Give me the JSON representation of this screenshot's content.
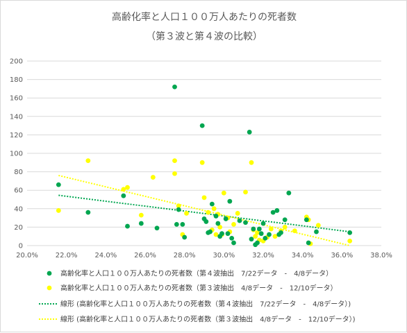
{
  "chart_data": {
    "type": "scatter",
    "title": "高齢化率と人口１００万人あたりの死者数",
    "subtitle": "（第３波と第４波の比較）",
    "xlabel": "",
    "ylabel": "",
    "xlim": [
      0.2,
      0.38
    ],
    "ylim": [
      0,
      200
    ],
    "x_ticks": [
      "20.0%",
      "22.0%",
      "24.0%",
      "26.0%",
      "28.0%",
      "30.0%",
      "32.0%",
      "34.0%",
      "36.0%",
      "38.0%"
    ],
    "y_ticks": [
      "0",
      "20",
      "40",
      "60",
      "80",
      "100",
      "120",
      "140",
      "160",
      "180",
      "200"
    ],
    "grid": "horizontal",
    "legend_position": "bottom",
    "series": [
      {
        "name": "高齢化率と人口１００万人あたりの死者数（第４波抽出　7/22データ　-　4/8データ）",
        "color": "#00a650",
        "points": [
          [
            0.216,
            66
          ],
          [
            0.231,
            36
          ],
          [
            0.249,
            54
          ],
          [
            0.251,
            21
          ],
          [
            0.258,
            24
          ],
          [
            0.266,
            19
          ],
          [
            0.275,
            172
          ],
          [
            0.276,
            23
          ],
          [
            0.277,
            39
          ],
          [
            0.279,
            23
          ],
          [
            0.28,
            9
          ],
          [
            0.289,
            130
          ],
          [
            0.29,
            29
          ],
          [
            0.291,
            26
          ],
          [
            0.292,
            14
          ],
          [
            0.293,
            15
          ],
          [
            0.294,
            45
          ],
          [
            0.296,
            32
          ],
          [
            0.297,
            24
          ],
          [
            0.298,
            10
          ],
          [
            0.299,
            13
          ],
          [
            0.301,
            29
          ],
          [
            0.302,
            13
          ],
          [
            0.303,
            48
          ],
          [
            0.304,
            8
          ],
          [
            0.305,
            3
          ],
          [
            0.308,
            27
          ],
          [
            0.311,
            25
          ],
          [
            0.313,
            123
          ],
          [
            0.314,
            7
          ],
          [
            0.315,
            18
          ],
          [
            0.316,
            1
          ],
          [
            0.317,
            3
          ],
          [
            0.318,
            18
          ],
          [
            0.319,
            13
          ],
          [
            0.32,
            24
          ],
          [
            0.321,
            8
          ],
          [
            0.323,
            12
          ],
          [
            0.325,
            36
          ],
          [
            0.327,
            38
          ],
          [
            0.328,
            12
          ],
          [
            0.329,
            14
          ],
          [
            0.331,
            28
          ],
          [
            0.333,
            57
          ],
          [
            0.342,
            28
          ],
          [
            0.343,
            3
          ],
          [
            0.347,
            15
          ],
          [
            0.364,
            14
          ]
        ]
      },
      {
        "name": "高齢化率と人口１００万人あたりの死者数（第３波抽出　4/8データ　-　12/10データ）",
        "color": "#ffff00",
        "points": [
          [
            0.216,
            38
          ],
          [
            0.231,
            92
          ],
          [
            0.249,
            61
          ],
          [
            0.251,
            63
          ],
          [
            0.258,
            33
          ],
          [
            0.264,
            74
          ],
          [
            0.275,
            92
          ],
          [
            0.275,
            78
          ],
          [
            0.277,
            43
          ],
          [
            0.279,
            12
          ],
          [
            0.281,
            35
          ],
          [
            0.289,
            90
          ],
          [
            0.29,
            52
          ],
          [
            0.292,
            36
          ],
          [
            0.294,
            17
          ],
          [
            0.295,
            40
          ],
          [
            0.296,
            12
          ],
          [
            0.297,
            34
          ],
          [
            0.298,
            20
          ],
          [
            0.299,
            12
          ],
          [
            0.3,
            57
          ],
          [
            0.302,
            30
          ],
          [
            0.303,
            15
          ],
          [
            0.305,
            23
          ],
          [
            0.307,
            35
          ],
          [
            0.311,
            58
          ],
          [
            0.314,
            90
          ],
          [
            0.315,
            17
          ],
          [
            0.316,
            10
          ],
          [
            0.317,
            14
          ],
          [
            0.318,
            6
          ],
          [
            0.32,
            5
          ],
          [
            0.322,
            9
          ],
          [
            0.324,
            18
          ],
          [
            0.326,
            10
          ],
          [
            0.329,
            16
          ],
          [
            0.331,
            20
          ],
          [
            0.336,
            16
          ],
          [
            0.342,
            31
          ],
          [
            0.343,
            28
          ],
          [
            0.344,
            2
          ],
          [
            0.348,
            22
          ],
          [
            0.364,
            5
          ]
        ]
      }
    ],
    "trendlines": [
      {
        "name": "線形 (高齢化率と人口１００万人あたりの死者数（第４波抽出　7/22データ　-　4/8データ）)",
        "color": "#00a650",
        "style": "dotted",
        "from": [
          0.216,
          54.5
        ],
        "to": [
          0.364,
          15
        ]
      },
      {
        "name": "線形 (高齢化率と人口１００万人あたりの死者数（第３波抽出　4/8データ　-　12/10データ）)",
        "color": "#ffff00",
        "style": "dotted",
        "from": [
          0.216,
          76
        ],
        "to": [
          0.364,
          0
        ]
      }
    ]
  }
}
